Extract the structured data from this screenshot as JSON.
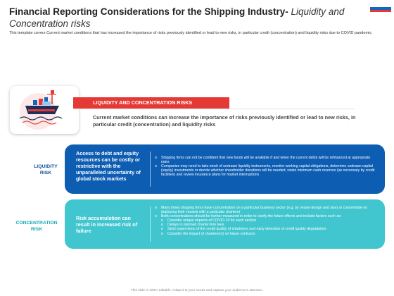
{
  "header": {
    "title_main": "Financial Reporting Considerations for the Shipping Industry-",
    "title_sub": "Liquidity and Concentration risks",
    "description": "This template covers Current market conditions that has increased the importance of risks previously identified or lead to new risks, in particular credit (concentration) and liquidity risks due to COVID pandemic"
  },
  "banner": {
    "label": "LIQUIDITY AND CONCENTRATION RISKS",
    "intro": "Current market conditions can increase the importance of risks previously identified or lead to new risks, in particular credit (concentration) and liquidity risks"
  },
  "liquidity": {
    "label": "LIQUIDITY RISK",
    "summary": "Access to debt and equity resources can be costly or restrictive with the unparalleled uncertainty of global stock markets",
    "bullets": [
      "Shipping firms can not be confident that new funds will be available if and when the current debts will be refinanced at appropriate rates",
      "Companies may need to take stock of undrawn liquidity instruments, monitor working capital obligations, determine undrawn capital (equity) investments or decide whether shareholder donations will be needed, retain minimum cash reserves (as necessary by credit facilities) and review insurance plans for market interruptions"
    ]
  },
  "concentration": {
    "label": "CONCENTRATION RISK",
    "summary": "Risk accumulation can result in increased risk of failure",
    "bullets": [
      "Many times shipping firms have concentration on a particular business sector (e.g. by vessel design and size) or concentrate on deploying their vessels with a particular charterer",
      "Both concentrations should be further measured in order to clarify the future effects and include factors such as:"
    ],
    "sub_bullets": [
      "Consider unique impacts of COVID-19 for each section",
      "Delays in planned charter-hire fees",
      "Strict supervision of the credit quality of charterers and early detection of credit quality degradation",
      "Consider the impact of charterer(s) on future contracts"
    ]
  },
  "footer": "This slide is 100% editable. Adapt it to your needs and capture your audience's attention.",
  "colors": {
    "red": "#e53935",
    "blue": "#0d5db3",
    "teal": "#41c6cf"
  }
}
